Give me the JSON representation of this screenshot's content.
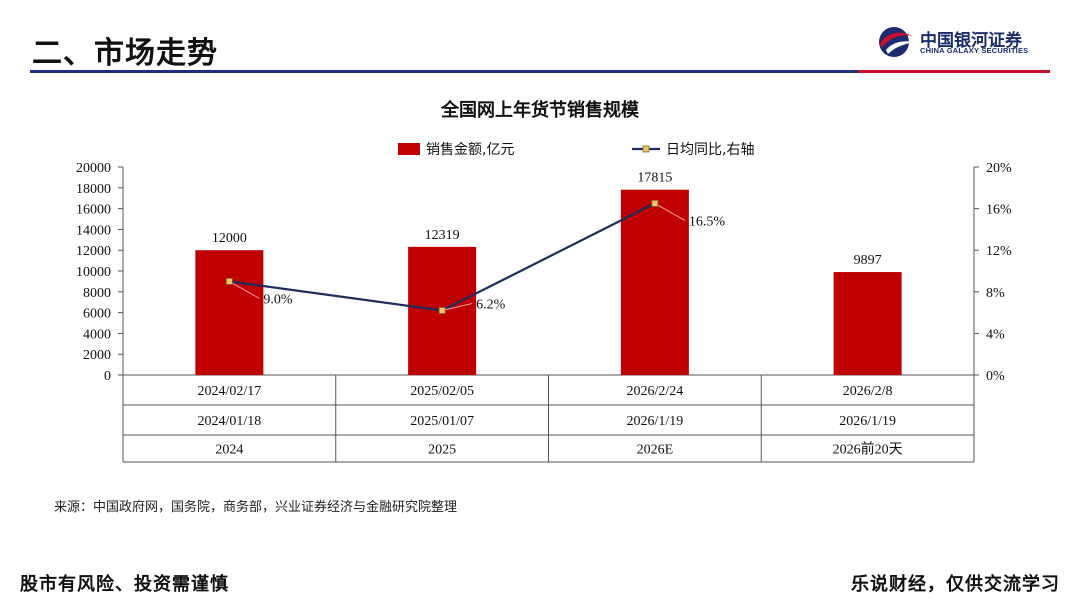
{
  "slide": {
    "title": "二、市场走势",
    "source": "来源：中国政府网，国务院，商务部，兴业证券经济与金融研究院整理",
    "footer_left": "股市有风险、投资需谨慎",
    "footer_right": "乐说财经，仅供交流学习"
  },
  "logo": {
    "name_cn": "中国银河证券",
    "name_en": "CHINA GALAXY SECURITIES"
  },
  "colors": {
    "bar": "#c00000",
    "line": "#1f2d5e",
    "marker": "#f2c46b",
    "leader": "#f0a0a0",
    "blue_rule": "#1c2f7a",
    "red_rule": "#c8102e"
  },
  "chart_data": {
    "type": "bar",
    "title": "全国网上年货节销售规模",
    "categories": [
      "2024",
      "2025",
      "2026E",
      "2026前20天"
    ],
    "category_rows": [
      [
        "2024/02/17",
        "2025/02/05",
        "2026/2/24",
        "2026/2/8"
      ],
      [
        "2024/01/18",
        "2025/01/07",
        "2026/1/19",
        "2026/1/19"
      ],
      [
        "2024",
        "2025",
        "2026E",
        "2026前20天"
      ]
    ],
    "series": [
      {
        "name": "销售金额,亿元",
        "type": "bar",
        "axis": "left",
        "values": [
          12000,
          12319,
          17815,
          9897
        ],
        "labels": [
          "12000",
          "12319",
          "17815",
          "9897"
        ]
      },
      {
        "name": "日均同比,右轴",
        "type": "line",
        "axis": "right",
        "values": [
          9.0,
          6.2,
          16.5,
          null
        ],
        "labels": [
          "9.0%",
          "6.2%",
          "16.5%",
          ""
        ]
      }
    ],
    "y_left": {
      "min": 0,
      "max": 20000,
      "step": 2000,
      "tick_labels": [
        "0",
        "2000",
        "4000",
        "6000",
        "8000",
        "10000",
        "12000",
        "14000",
        "16000",
        "18000",
        "20000"
      ]
    },
    "y_right": {
      "min": 0,
      "max": 20,
      "step": 4,
      "tick_labels": [
        "0%",
        "4%",
        "8%",
        "12%",
        "16%",
        "20%"
      ]
    },
    "legend_position": "top-center",
    "grid": false
  }
}
